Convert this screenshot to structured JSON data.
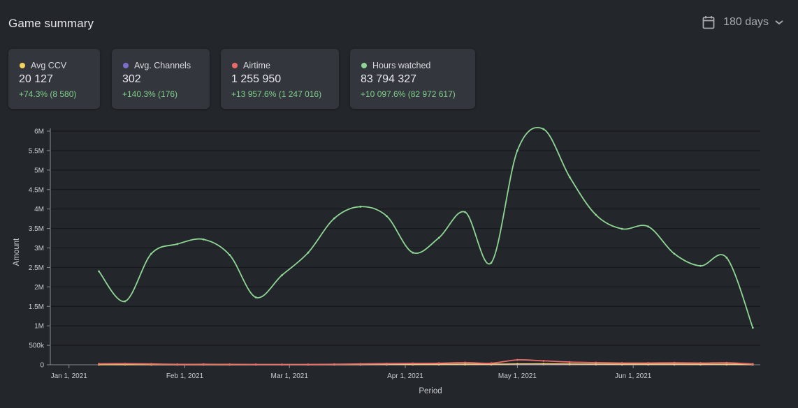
{
  "header": {
    "title": "Game summary",
    "range_label": "180 days",
    "calendar_icon": "calendar-icon",
    "chevron_icon": "chevron-down-icon"
  },
  "cards": [
    {
      "label": "Avg CCV",
      "value": "20 127",
      "delta": "+74.3% (8 580)",
      "color": "#f4d35e"
    },
    {
      "label": "Avg. Channels",
      "value": "302",
      "delta": "+140.3% (176)",
      "color": "#7b6fc9"
    },
    {
      "label": "Airtime",
      "value": "1 255 950",
      "delta": "+13 957.6% (1 247 016)",
      "color": "#ec6a6a"
    },
    {
      "label": "Hours watched",
      "value": "83 794 327",
      "delta": "+10 097.6% (82 972 617)",
      "color": "#8fd694"
    }
  ],
  "colors": {
    "background": "#23262b",
    "card": "#33373d",
    "grid": "#15171a",
    "delta_positive": "#7fcf8a"
  },
  "chart_data": {
    "type": "line",
    "xlabel": "Period",
    "ylabel": "Amount",
    "x_tick_labels": [
      "Jan 1, 2021",
      "Feb 1, 2021",
      "Mar 1, 2021",
      "Apr 1, 2021",
      "May 1, 2021",
      "Jun 1, 2021"
    ],
    "y_tick_labels": [
      "0",
      "500k",
      "1M",
      "1.5M",
      "2M",
      "2.5M",
      "3M",
      "3.5M",
      "4M",
      "4.5M",
      "5M",
      "5.5M",
      "6M"
    ],
    "ylim": [
      0,
      6000000
    ],
    "xlim": [
      "2020-12-27",
      "2021-07-05"
    ],
    "grid": true,
    "x": [
      "2021-01-09",
      "2021-01-16",
      "2021-01-23",
      "2021-01-30",
      "2021-02-06",
      "2021-02-13",
      "2021-02-20",
      "2021-02-27",
      "2021-03-06",
      "2021-03-13",
      "2021-03-20",
      "2021-03-27",
      "2021-04-03",
      "2021-04-10",
      "2021-04-17",
      "2021-04-24",
      "2021-05-01",
      "2021-05-08",
      "2021-05-15",
      "2021-05-22",
      "2021-05-29",
      "2021-06-05",
      "2021-06-12",
      "2021-06-19",
      "2021-06-26",
      "2021-07-03"
    ],
    "series": [
      {
        "name": "Hours watched",
        "color": "#8fd694",
        "values": [
          2400000,
          1630000,
          2850000,
          3100000,
          3220000,
          2820000,
          1730000,
          2300000,
          2880000,
          3760000,
          4060000,
          3820000,
          2880000,
          3260000,
          3920000,
          2620000,
          5500000,
          6050000,
          4820000,
          3850000,
          3490000,
          3550000,
          2850000,
          2540000,
          2750000,
          950000
        ]
      },
      {
        "name": "Airtime",
        "color": "#ec6a6a",
        "values": [
          25000,
          28000,
          22000,
          10000,
          12000,
          10000,
          8000,
          6000,
          8000,
          12000,
          22000,
          30000,
          35000,
          40000,
          55000,
          40000,
          125000,
          100000,
          70000,
          55000,
          45000,
          45000,
          50000,
          45000,
          50000,
          20000
        ]
      },
      {
        "name": "Avg CCV",
        "color": "#f4d35e",
        "values": [
          5000,
          5000,
          5000,
          4000,
          4000,
          4000,
          4000,
          4000,
          4000,
          6000,
          8000,
          10000,
          10000,
          12000,
          15000,
          14000,
          20000,
          22000,
          18000,
          16000,
          14000,
          14000,
          14000,
          13000,
          13000,
          8000
        ]
      },
      {
        "name": "Avg. Channels",
        "color": "#7b6fc9",
        "values": [
          100,
          100,
          100,
          100,
          100,
          100,
          100,
          100,
          150,
          200,
          200,
          250,
          250,
          300,
          300,
          300,
          350,
          350,
          320,
          300,
          300,
          300,
          300,
          300,
          300,
          250
        ]
      }
    ]
  }
}
